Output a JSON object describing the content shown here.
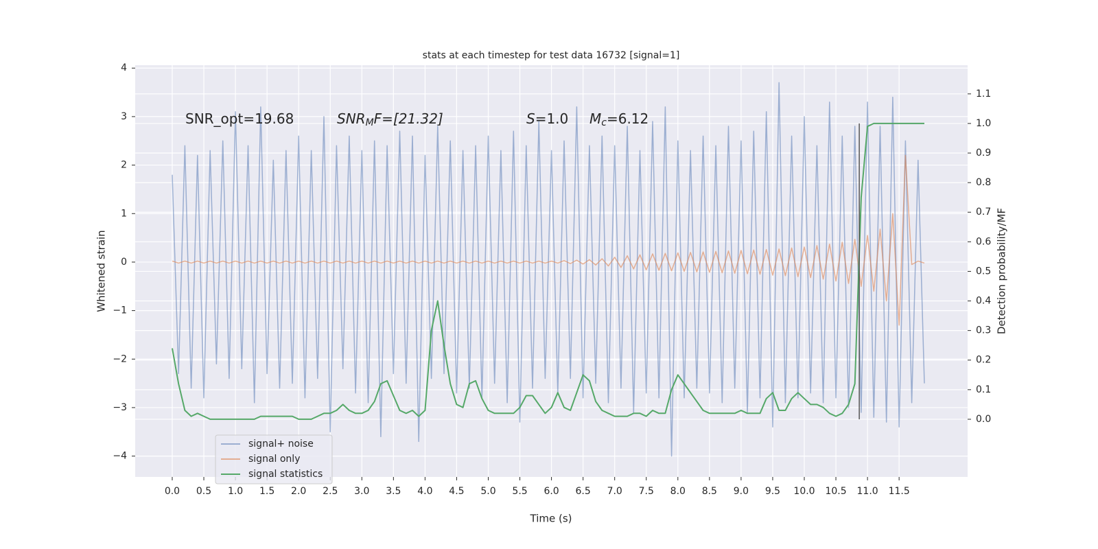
{
  "chart_data": {
    "type": "line",
    "title": "stats at each timestep for test data 16732 [signal=1]",
    "xlabel": "Time (s)",
    "ylabel": "Whitened strain",
    "y2label": "Detection probability/MF",
    "annotations": [
      [
        "SNR_opt=19.68"
      ],
      [
        "SNR",
        "M",
        "F=[21.32]"
      ],
      [
        "S",
        "=1.0"
      ],
      [
        "M",
        "c",
        "=6.12"
      ]
    ],
    "grid": true,
    "legend": "lower left",
    "xlim": [
      -0.586,
      12.584
    ],
    "ylim": [
      -4.43,
      4.06
    ],
    "y2lim": [
      -0.195,
      1.197
    ],
    "xticks": [
      {
        "value": 0,
        "label": "0.0"
      },
      0.5,
      {
        "value": 1,
        "label": "1.0"
      },
      1.5,
      {
        "value": 2,
        "label": "2.0"
      },
      2.5,
      {
        "value": 3,
        "label": "3.0"
      },
      3.5,
      {
        "value": 4,
        "label": "4.0"
      },
      4.5,
      {
        "value": 5,
        "label": "5.0"
      },
      5.5,
      {
        "value": 6,
        "label": "6.0"
      },
      6.5,
      {
        "value": 7,
        "label": "7.0"
      },
      7.5,
      {
        "value": 8,
        "label": "8.0"
      },
      8.5,
      {
        "value": 9,
        "label": "9.0"
      },
      9.5,
      {
        "value": 10,
        "label": "10.0"
      },
      10.5,
      {
        "value": 11,
        "label": "11.0"
      },
      11.5
    ],
    "yticks": [
      {
        "value": -4,
        "label": "−4"
      },
      {
        "value": -3,
        "label": "−3"
      },
      {
        "value": -2,
        "label": "−2"
      },
      {
        "value": -1,
        "label": "−1"
      },
      0,
      1,
      2,
      3,
      4
    ],
    "y2ticks": [
      {
        "value": 0,
        "label": "0.0"
      },
      0.1,
      0.2,
      0.3,
      0.4,
      0.5,
      0.6,
      0.7,
      0.8,
      0.9,
      {
        "value": 1,
        "label": "1.0"
      },
      1.1
    ],
    "vline": {
      "x": 10.87,
      "y2": [
        0,
        1
      ],
      "color": "#555555"
    },
    "x": [
      0.0,
      0.1,
      0.2,
      0.3,
      0.4,
      0.5,
      0.6,
      0.7,
      0.8,
      0.9,
      1.0,
      1.1,
      1.2,
      1.3,
      1.4,
      1.5,
      1.6,
      1.7,
      1.8,
      1.9,
      2.0,
      2.1,
      2.2,
      2.3,
      2.4,
      2.5,
      2.6,
      2.7,
      2.8,
      2.9,
      3.0,
      3.1,
      3.2,
      3.3,
      3.4,
      3.5,
      3.6,
      3.7,
      3.8,
      3.9,
      4.0,
      4.1,
      4.2,
      4.3,
      4.4,
      4.5,
      4.6,
      4.7,
      4.8,
      4.9,
      5.0,
      5.1,
      5.2,
      5.3,
      5.4,
      5.5,
      5.6,
      5.7,
      5.8,
      5.9,
      6.0,
      6.1,
      6.2,
      6.3,
      6.4,
      6.5,
      6.6,
      6.7,
      6.8,
      6.9,
      7.0,
      7.1,
      7.2,
      7.3,
      7.4,
      7.5,
      7.6,
      7.7,
      7.8,
      7.9,
      8.0,
      8.1,
      8.2,
      8.3,
      8.4,
      8.5,
      8.6,
      8.7,
      8.8,
      8.9,
      9.0,
      9.1,
      9.2,
      9.3,
      9.4,
      9.5,
      9.6,
      9.7,
      9.8,
      9.9,
      10.0,
      10.1,
      10.2,
      10.3,
      10.4,
      10.5,
      10.6,
      10.7,
      10.8,
      10.9,
      11.0,
      11.1,
      11.2,
      11.3,
      11.4,
      11.5,
      11.6,
      11.7,
      11.8,
      11.9
    ],
    "series": [
      {
        "name": "signal+ noise",
        "color": "#4c72b0",
        "opacity": 0.5,
        "values": [
          1.8,
          -2.3,
          2.4,
          -2.6,
          2.2,
          -2.8,
          2.3,
          -2.1,
          2.5,
          -2.4,
          3.1,
          -2.2,
          2.4,
          -2.9,
          3.2,
          -2.3,
          2.1,
          -2.6,
          2.3,
          -2.5,
          2.6,
          -2.8,
          2.3,
          -2.4,
          3.0,
          -3.5,
          2.4,
          -2.2,
          2.6,
          -2.7,
          2.3,
          -2.9,
          2.5,
          -3.6,
          2.4,
          -2.3,
          2.7,
          -2.5,
          2.6,
          -3.7,
          2.2,
          -2.4,
          2.8,
          -2.3,
          2.5,
          -2.7,
          2.3,
          -2.6,
          2.4,
          -2.8,
          2.6,
          -2.5,
          2.3,
          -2.9,
          2.7,
          -3.3,
          2.4,
          -2.6,
          2.9,
          -2.4,
          2.3,
          -2.7,
          2.5,
          -2.4,
          3.2,
          -2.8,
          2.4,
          -2.5,
          2.6,
          -2.9,
          2.4,
          -2.6,
          2.8,
          -3.1,
          2.3,
          -2.7,
          2.9,
          -2.8,
          3.2,
          -4.0,
          2.5,
          -2.8,
          2.3,
          -2.6,
          2.6,
          -2.7,
          2.4,
          -2.9,
          2.8,
          -2.6,
          2.5,
          -3.1,
          2.7,
          -2.8,
          3.1,
          -3.4,
          3.7,
          -2.9,
          2.6,
          -2.8,
          3.0,
          -2.7,
          2.4,
          -2.9,
          3.3,
          -2.8,
          2.6,
          -3.0,
          2.8,
          -3.1,
          3.3,
          -3.2,
          2.8,
          -3.3,
          3.4,
          -3.4,
          2.5,
          -2.9,
          2.1,
          -2.5
        ]
      },
      {
        "name": "signal only",
        "color": "#dd8452",
        "opacity": 0.6,
        "values": [
          0.02,
          -0.02,
          0.02,
          -0.02,
          0.02,
          -0.02,
          0.02,
          -0.02,
          0.02,
          -0.02,
          0.02,
          -0.02,
          0.02,
          -0.02,
          0.02,
          -0.02,
          0.02,
          -0.02,
          0.02,
          -0.02,
          0.02,
          -0.02,
          0.02,
          -0.02,
          0.02,
          -0.02,
          0.02,
          -0.02,
          0.02,
          -0.02,
          0.02,
          -0.02,
          0.02,
          -0.02,
          0.02,
          -0.02,
          0.02,
          -0.02,
          0.02,
          -0.02,
          0.02,
          -0.02,
          0.02,
          -0.02,
          0.02,
          -0.02,
          0.02,
          -0.02,
          0.02,
          -0.02,
          0.02,
          -0.02,
          0.02,
          -0.02,
          0.02,
          -0.02,
          0.02,
          -0.02,
          0.02,
          -0.02,
          0.02,
          -0.02,
          0.03,
          -0.03,
          0.04,
          -0.04,
          0.05,
          -0.06,
          0.07,
          -0.08,
          0.1,
          -0.11,
          0.13,
          -0.14,
          0.15,
          -0.16,
          0.17,
          -0.17,
          0.18,
          -0.18,
          0.19,
          -0.19,
          0.2,
          -0.2,
          0.21,
          -0.21,
          0.22,
          -0.22,
          0.23,
          -0.23,
          0.24,
          -0.24,
          0.25,
          -0.25,
          0.26,
          -0.27,
          0.27,
          -0.28,
          0.29,
          -0.3,
          0.31,
          -0.32,
          0.34,
          -0.35,
          0.37,
          -0.39,
          0.41,
          -0.44,
          0.47,
          -0.5,
          0.55,
          -0.6,
          0.68,
          -0.8,
          1.0,
          -1.3,
          2.2,
          -0.05,
          0.02,
          -0.02
        ]
      },
      {
        "name": "signal statistics",
        "color": "#55a868",
        "opacity": 1,
        "axis": "y2",
        "values": [
          0.24,
          0.12,
          0.03,
          0.01,
          0.02,
          0.01,
          0,
          0,
          0,
          0,
          0,
          0,
          0,
          0,
          0.01,
          0.01,
          0.01,
          0.01,
          0.01,
          0.01,
          0,
          0,
          0,
          0.01,
          0.02,
          0.02,
          0.03,
          0.05,
          0.03,
          0.02,
          0.02,
          0.03,
          0.06,
          0.12,
          0.13,
          0.08,
          0.03,
          0.02,
          0.03,
          0.01,
          0.03,
          0.3,
          0.4,
          0.25,
          0.12,
          0.05,
          0.04,
          0.12,
          0.13,
          0.07,
          0.03,
          0.02,
          0.02,
          0.02,
          0.02,
          0.04,
          0.08,
          0.08,
          0.05,
          0.02,
          0.04,
          0.09,
          0.04,
          0.03,
          0.09,
          0.15,
          0.13,
          0.06,
          0.03,
          0.02,
          0.01,
          0.01,
          0.01,
          0.02,
          0.02,
          0.01,
          0.03,
          0.02,
          0.02,
          0.1,
          0.15,
          0.12,
          0.09,
          0.06,
          0.03,
          0.02,
          0.02,
          0.02,
          0.02,
          0.02,
          0.03,
          0.02,
          0.02,
          0.02,
          0.07,
          0.09,
          0.03,
          0.03,
          0.07,
          0.09,
          0.07,
          0.05,
          0.05,
          0.04,
          0.02,
          0.01,
          0.02,
          0.05,
          0.12,
          0.75,
          0.99,
          1,
          1,
          1,
          1,
          1,
          1,
          1,
          1,
          1
        ]
      }
    ]
  }
}
